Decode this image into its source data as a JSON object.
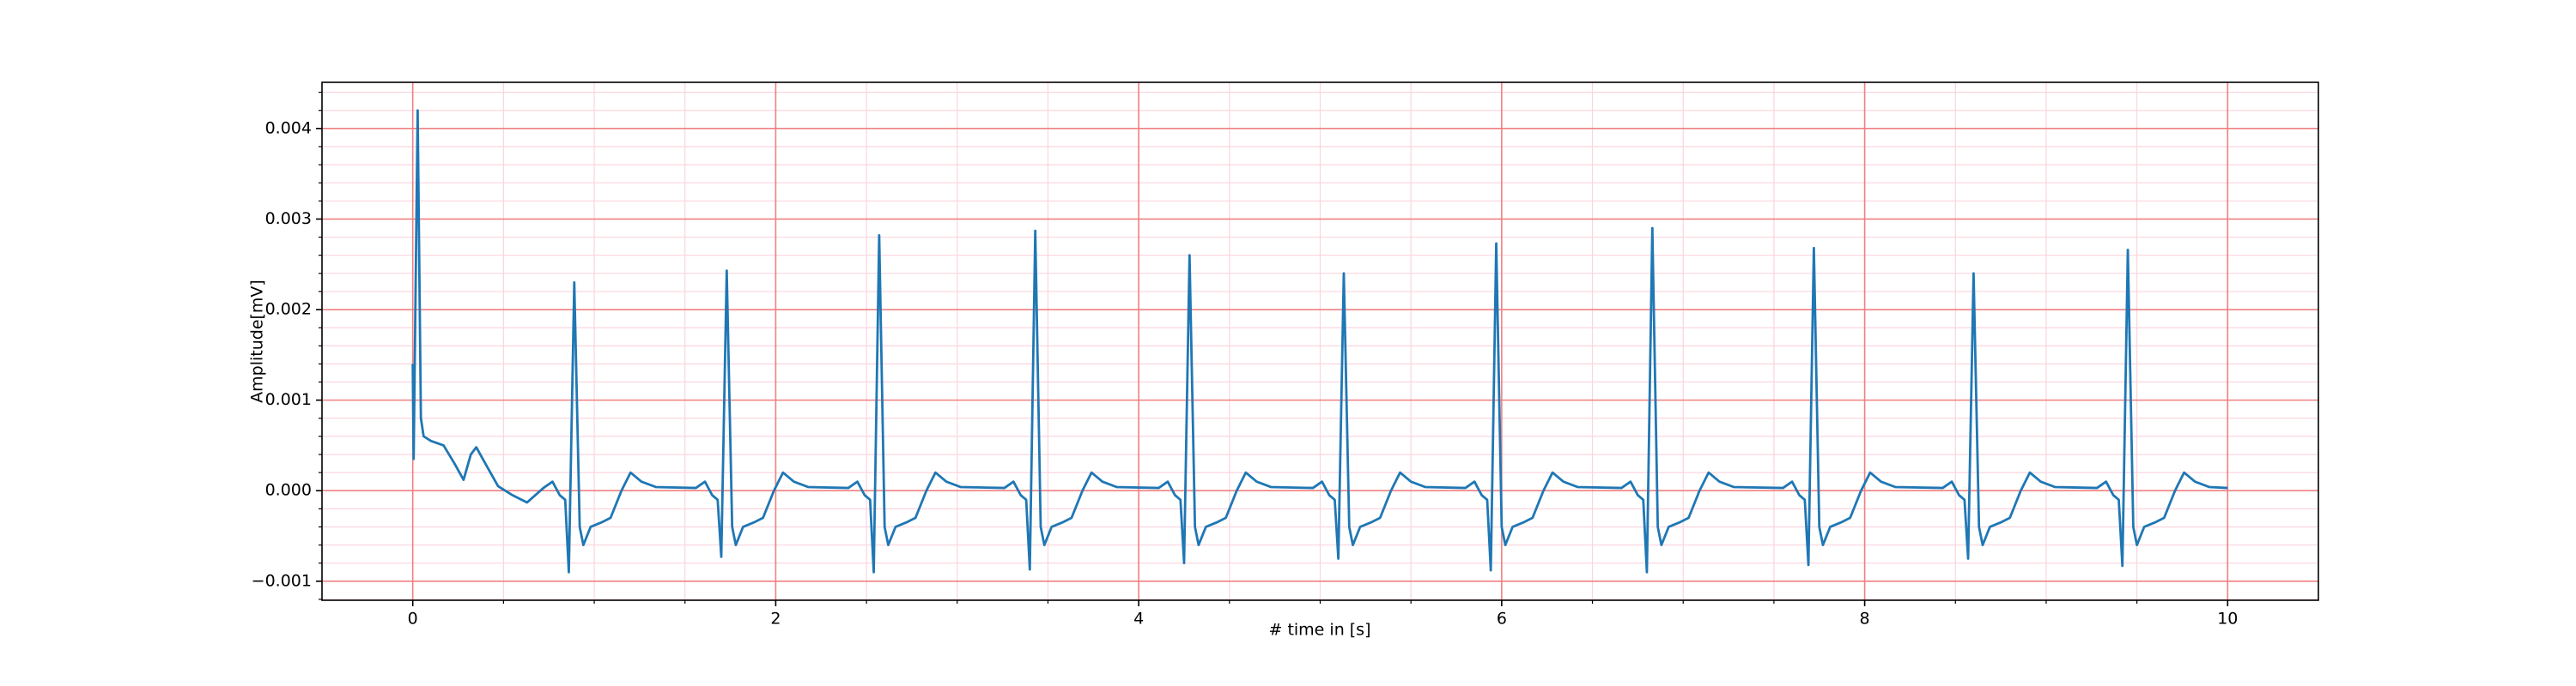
{
  "chart_data": {
    "type": "line",
    "xlabel": "# time in [s]",
    "ylabel": "Amplitude[mV]",
    "xlim": [
      -0.5,
      10.5
    ],
    "ylim": [
      -0.00121,
      0.00451
    ],
    "xticks": [
      0,
      2,
      4,
      6,
      8,
      10
    ],
    "yticks": [
      {
        "value": -0.001,
        "label": "−0.001"
      },
      {
        "value": 0,
        "label": "0.000"
      },
      0.001,
      0.002,
      0.003,
      0.004
    ],
    "xticks_minor": [
      0.5,
      1,
      1.5,
      2.5,
      3,
      3.5,
      4.5,
      5,
      5.5,
      6.5,
      7,
      7.5,
      8.5,
      9,
      9.5
    ],
    "yticks_minor": [
      -0.0012,
      -0.0008,
      -0.0006,
      -0.0004,
      -0.0002,
      0.0002,
      0.0004,
      0.0006,
      0.0008,
      0.0012,
      0.0014,
      0.0016,
      0.0018,
      0.0022,
      0.0024,
      0.0026,
      0.0028,
      0.0032,
      0.0034,
      0.0036,
      0.0038,
      0.0042,
      0.0044
    ],
    "grid": true,
    "grid_color": "#f08080",
    "minor_grid_color": "#fbd5dd",
    "x": [
      0,
      0.005,
      0.027,
      0.045,
      0.06,
      0.1,
      0.17,
      0.23,
      0.28,
      0.32,
      0.35,
      0.4,
      0.47,
      0.55,
      0.63,
      0.72,
      0.77,
      0.81,
      0.84,
      0.86,
      0.89,
      0.92,
      0.94,
      0.98,
      1.04,
      1.09,
      1.15,
      1.2,
      1.26,
      1.34,
      1.56,
      1.61,
      1.65,
      1.68,
      1.7,
      1.73,
      1.76,
      1.78,
      1.82,
      1.88,
      1.93,
      1.99,
      2.04,
      2.1,
      2.18,
      2.4,
      2.45,
      2.49,
      2.52,
      2.54,
      2.57,
      2.6,
      2.62,
      2.66,
      2.72,
      2.77,
      2.83,
      2.88,
      2.94,
      3.02,
      3.26,
      3.31,
      3.35,
      3.38,
      3.4,
      3.43,
      3.46,
      3.48,
      3.52,
      3.58,
      3.63,
      3.69,
      3.74,
      3.8,
      3.88,
      4.11,
      4.16,
      4.2,
      4.23,
      4.25,
      4.28,
      4.31,
      4.33,
      4.37,
      4.43,
      4.48,
      4.54,
      4.59,
      4.65,
      4.73,
      4.96,
      5.01,
      5.05,
      5.08,
      5.1,
      5.13,
      5.16,
      5.18,
      5.22,
      5.28,
      5.33,
      5.39,
      5.44,
      5.5,
      5.58,
      5.8,
      5.85,
      5.89,
      5.92,
      5.94,
      5.97,
      6.0,
      6.02,
      6.06,
      6.12,
      6.17,
      6.23,
      6.28,
      6.34,
      6.42,
      6.66,
      6.71,
      6.75,
      6.78,
      6.8,
      6.83,
      6.86,
      6.88,
      6.92,
      6.98,
      7.03,
      7.09,
      7.14,
      7.2,
      7.28,
      7.55,
      7.6,
      7.64,
      7.67,
      7.69,
      7.72,
      7.75,
      7.77,
      7.81,
      7.87,
      7.92,
      7.98,
      8.03,
      8.09,
      8.17,
      8.43,
      8.48,
      8.52,
      8.55,
      8.57,
      8.6,
      8.63,
      8.65,
      8.69,
      8.75,
      8.8,
      8.86,
      8.91,
      8.97,
      9.05,
      9.28,
      9.33,
      9.37,
      9.4,
      9.42,
      9.45,
      9.48,
      9.5,
      9.54,
      9.6,
      9.65,
      9.71,
      9.76,
      9.82,
      9.9,
      10.0
    ],
    "series": [
      {
        "color": "#1f77b4",
        "values": [
          0.0014,
          0.00035,
          0.0042,
          0.0008,
          0.0006,
          0.00055,
          0.0005,
          0.0003,
          0.00012,
          0.0004,
          0.00048,
          0.0003,
          5e-05,
          -5e-05,
          -0.00013,
          3e-05,
          0.0001,
          -5e-05,
          -0.0001,
          -0.0009,
          0.0023,
          -0.0004,
          -0.0006,
          -0.0004,
          -0.00035,
          -0.0003,
          0,
          0.0002,
          0.0001,
          4e-05,
          3e-05,
          0.0001,
          -5e-05,
          -0.0001,
          -0.00073,
          0.00243,
          -0.0004,
          -0.0006,
          -0.0004,
          -0.00035,
          -0.0003,
          0,
          0.0002,
          0.0001,
          4e-05,
          3e-05,
          0.0001,
          -5e-05,
          -0.0001,
          -0.0009,
          0.00282,
          -0.0004,
          -0.0006,
          -0.0004,
          -0.00035,
          -0.0003,
          0,
          0.0002,
          0.0001,
          4e-05,
          3e-05,
          0.0001,
          -5e-05,
          -0.0001,
          -0.00087,
          0.00287,
          -0.0004,
          -0.0006,
          -0.0004,
          -0.00035,
          -0.0003,
          0,
          0.0002,
          0.0001,
          4e-05,
          3e-05,
          0.0001,
          -5e-05,
          -0.0001,
          -0.0008,
          0.0026,
          -0.0004,
          -0.0006,
          -0.0004,
          -0.00035,
          -0.0003,
          0,
          0.0002,
          0.0001,
          4e-05,
          3e-05,
          0.0001,
          -5e-05,
          -0.0001,
          -0.00075,
          0.0024,
          -0.0004,
          -0.0006,
          -0.0004,
          -0.00035,
          -0.0003,
          0,
          0.0002,
          0.0001,
          4e-05,
          3e-05,
          0.0001,
          -5e-05,
          -0.0001,
          -0.00088,
          0.00273,
          -0.0004,
          -0.0006,
          -0.0004,
          -0.00035,
          -0.0003,
          0,
          0.0002,
          0.0001,
          4e-05,
          3e-05,
          0.0001,
          -5e-05,
          -0.0001,
          -0.0009,
          0.0029,
          -0.0004,
          -0.0006,
          -0.0004,
          -0.00035,
          -0.0003,
          0,
          0.0002,
          0.0001,
          4e-05,
          3e-05,
          0.0001,
          -5e-05,
          -0.0001,
          -0.00082,
          0.00268,
          -0.0004,
          -0.0006,
          -0.0004,
          -0.00035,
          -0.0003,
          0,
          0.0002,
          0.0001,
          4e-05,
          3e-05,
          0.0001,
          -5e-05,
          -0.0001,
          -0.00075,
          0.0024,
          -0.0004,
          -0.0006,
          -0.0004,
          -0.00035,
          -0.0003,
          0,
          0.0002,
          0.0001,
          4e-05,
          3e-05,
          0.0001,
          -5e-05,
          -0.0001,
          -0.00083,
          0.00266,
          -0.0004,
          -0.0006,
          -0.0004,
          -0.00035,
          -0.0003,
          0,
          0.0002,
          0.0001,
          4e-05,
          3e-05
        ]
      }
    ]
  }
}
